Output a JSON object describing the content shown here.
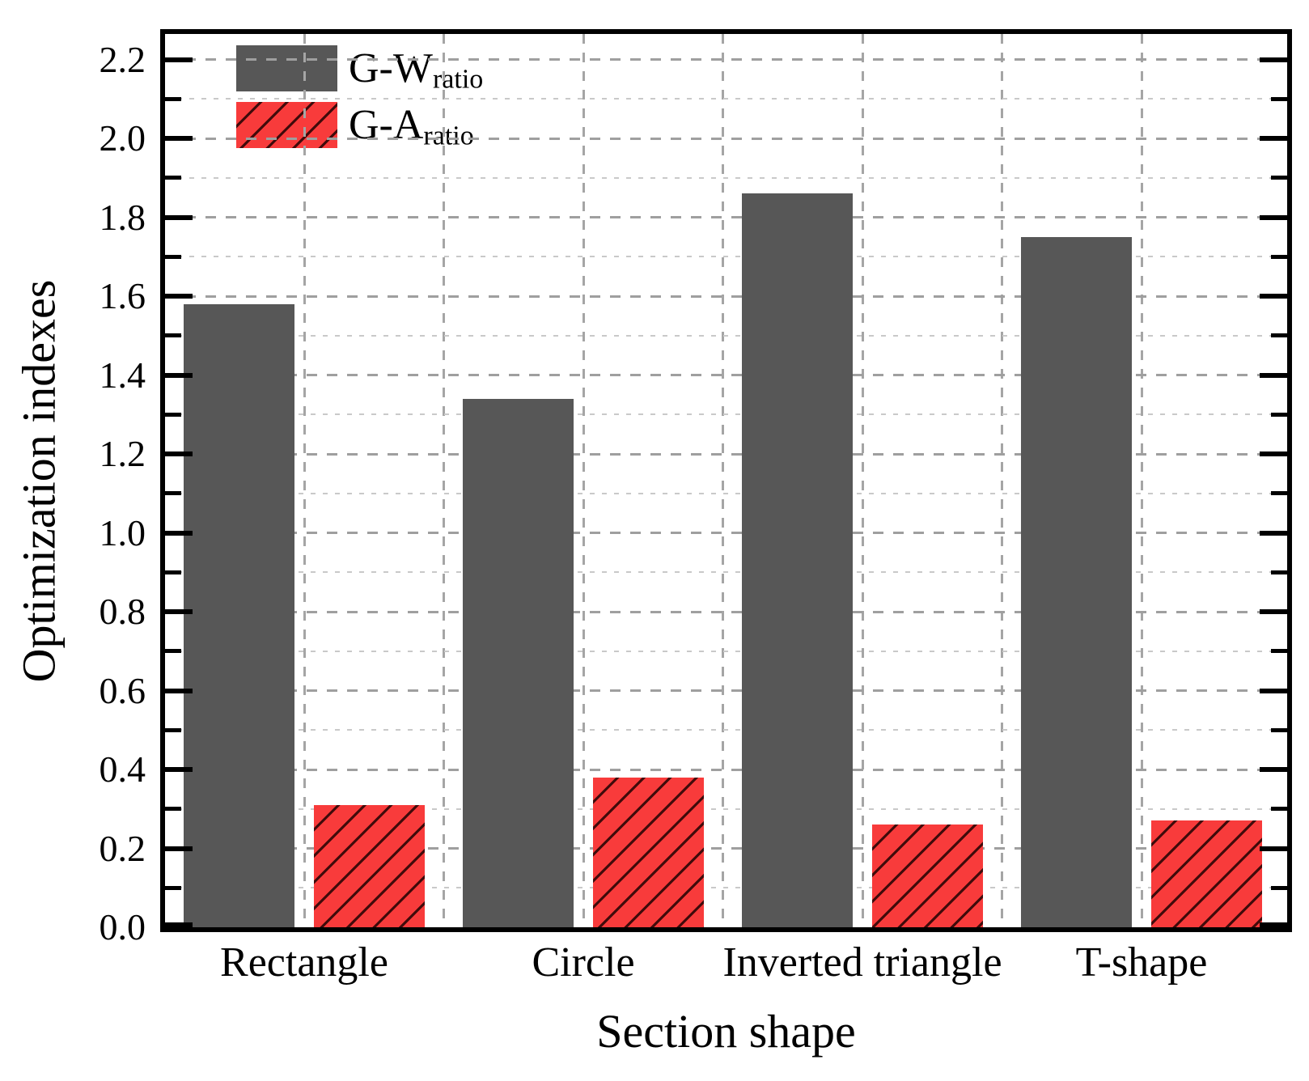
{
  "figure": {
    "background": "#ffffff",
    "text_color": "#000000",
    "axis_color": "#000000",
    "grid_major_color": "#9f9f9f",
    "grid_minor_color": "#c9c9c9"
  },
  "chart_data": {
    "type": "bar",
    "title": "",
    "xlabel": "Section shape",
    "ylabel": "Optimization indexes",
    "categories": [
      "Rectangle",
      "Circle",
      "Inverted triangle",
      "T-shape"
    ],
    "series": [
      {
        "name": "G-W",
        "name_subscript": "ratio",
        "color": "#575757",
        "hatch": "none",
        "values": [
          1.58,
          1.34,
          1.86,
          1.75
        ]
      },
      {
        "name": "G-A",
        "name_subscript": "ratio",
        "color": "#f83b3b",
        "hatch": "diagonal-forward",
        "values": [
          0.31,
          0.38,
          0.26,
          0.27
        ]
      }
    ],
    "ylim": [
      0.0,
      2.26
    ],
    "ytick_step": 0.2,
    "yminor_step": 0.1,
    "ytick_labels": [
      "0.0",
      "0.2",
      "0.4",
      "0.6",
      "0.8",
      "1.0",
      "1.2",
      "1.4",
      "1.6",
      "1.8",
      "2.0",
      "2.2"
    ],
    "grid": "dashed horizontal major+minor, dashed vertical at category centers and midpoints",
    "legend_position": "top-left inside plot"
  }
}
